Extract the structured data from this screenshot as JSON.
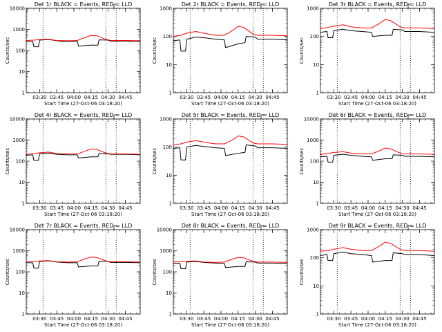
{
  "chart_data": [
    {
      "type": "line",
      "title": "Det 1r BLACK = Events, RED = LLD",
      "xlabel": "Start Time (27-Oct-06 03:18:20)",
      "ylabel": "Counts/sec",
      "xlim": [
        "03:18:20",
        "04:58:00"
      ],
      "ylim": [
        1,
        10000
      ],
      "yscale": "log",
      "x_tick_labels": [
        "03:30",
        "03:45",
        "04:00",
        "04:15",
        "04:30",
        "04:45"
      ],
      "y_tick_labels": [
        "1",
        "10",
        "100",
        "1000",
        "10000"
      ],
      "vertical_dotted_lines": [
        "03:33",
        "04:28",
        "04:37"
      ],
      "series": [
        {
          "color": "#000000",
          "x": [
            "03:18",
            "03:24",
            "03:25",
            "03:29",
            "03:30",
            "03:38",
            "03:45",
            "03:50",
            "04:03",
            "04:04",
            "04:15",
            "04:21",
            "04:22",
            "04:30",
            "04:32",
            "04:45",
            "04:58"
          ],
          "values": [
            270,
            270,
            150,
            150,
            310,
            330,
            290,
            270,
            270,
            160,
            180,
            180,
            320,
            310,
            280,
            280,
            270
          ]
        },
        {
          "color": "#ff0000",
          "x": [
            "03:18",
            "03:25",
            "03:30",
            "03:38",
            "03:45",
            "03:55",
            "04:03",
            "04:10",
            "04:15",
            "04:20",
            "04:28",
            "04:32",
            "04:45",
            "04:58"
          ],
          "values": [
            300,
            310,
            330,
            340,
            300,
            290,
            300,
            420,
            520,
            500,
            340,
            300,
            300,
            290
          ]
        }
      ]
    },
    {
      "type": "line",
      "title": "Det 2r BLACK = Events, RED = LLD",
      "xlabel": "Start Time (27-Oct-06 03:18:20)",
      "ylabel": "Counts/sec",
      "xlim": [
        "03:18:20",
        "04:58:00"
      ],
      "ylim": [
        1,
        1000
      ],
      "yscale": "log",
      "x_tick_labels": [
        "03:30",
        "03:45",
        "04:00",
        "04:15",
        "04:30",
        "04:45"
      ],
      "y_tick_labels": [
        "1",
        "10",
        "100",
        "1000"
      ],
      "vertical_dotted_lines": [
        "03:33",
        "04:28",
        "04:37"
      ],
      "series": [
        {
          "color": "#000000",
          "x": [
            "03:18",
            "03:24",
            "03:25",
            "03:29",
            "03:30",
            "03:38",
            "03:45",
            "03:55",
            "04:03",
            "04:04",
            "04:15",
            "04:21",
            "04:22",
            "04:30",
            "04:32",
            "04:45",
            "04:58"
          ],
          "values": [
            70,
            75,
            30,
            30,
            80,
            95,
            90,
            80,
            75,
            40,
            55,
            60,
            100,
            95,
            80,
            80,
            75
          ]
        },
        {
          "color": "#ff0000",
          "x": [
            "03:18",
            "03:25",
            "03:30",
            "03:38",
            "03:45",
            "03:55",
            "04:03",
            "04:10",
            "04:15",
            "04:20",
            "04:28",
            "04:32",
            "04:45",
            "04:58"
          ],
          "values": [
            100,
            110,
            130,
            150,
            130,
            110,
            110,
            160,
            230,
            210,
            120,
            110,
            110,
            105
          ]
        }
      ]
    },
    {
      "type": "line",
      "title": "Det 3r BLACK = Events, RED = LLD",
      "xlabel": "Start Time (27-Oct-06 03:18:20)",
      "ylabel": "Counts/sec",
      "xlim": [
        "03:18:20",
        "04:58:00"
      ],
      "ylim": [
        1,
        1000
      ],
      "yscale": "log",
      "x_tick_labels": [
        "03:30",
        "03:45",
        "04:00",
        "04:15",
        "04:30",
        "04:45"
      ],
      "y_tick_labels": [
        "1",
        "10",
        "100",
        "1000"
      ],
      "vertical_dotted_lines": [
        "03:33",
        "04:28",
        "04:37"
      ],
      "series": [
        {
          "color": "#000000",
          "x": [
            "03:18",
            "03:24",
            "03:25",
            "03:29",
            "03:30",
            "03:38",
            "03:45",
            "03:55",
            "04:03",
            "04:04",
            "04:15",
            "04:21",
            "04:22",
            "04:30",
            "04:32",
            "04:45",
            "04:58"
          ],
          "values": [
            140,
            150,
            90,
            90,
            160,
            180,
            160,
            150,
            140,
            100,
            110,
            110,
            180,
            170,
            150,
            150,
            140
          ]
        },
        {
          "color": "#ff0000",
          "x": [
            "03:18",
            "03:25",
            "03:30",
            "03:38",
            "03:45",
            "03:55",
            "04:03",
            "04:10",
            "04:15",
            "04:20",
            "04:28",
            "04:32",
            "04:45",
            "04:58"
          ],
          "values": [
            190,
            210,
            230,
            260,
            220,
            200,
            200,
            290,
            400,
            360,
            220,
            200,
            200,
            190
          ]
        }
      ]
    },
    {
      "type": "line",
      "title": "Det 4r BLACK = Events, RED = LLD",
      "xlabel": "Start Time (27-Oct-06 03:18:20)",
      "ylabel": "Counts/sec",
      "xlim": [
        "03:18:20",
        "04:58:00"
      ],
      "ylim": [
        1,
        10000
      ],
      "yscale": "log",
      "x_tick_labels": [
        "03:30",
        "03:45",
        "04:00",
        "04:15",
        "04:30",
        "04:45"
      ],
      "y_tick_labels": [
        "1",
        "10",
        "100",
        "1000",
        "10000"
      ],
      "vertical_dotted_lines": [
        "03:33",
        "04:28",
        "04:37"
      ],
      "series": [
        {
          "color": "#000000",
          "x": [
            "03:18",
            "03:24",
            "03:25",
            "03:29",
            "03:30",
            "03:38",
            "03:45",
            "03:55",
            "04:03",
            "04:04",
            "04:15",
            "04:21",
            "04:22",
            "04:30",
            "04:32",
            "04:45",
            "04:58"
          ],
          "values": [
            190,
            200,
            110,
            110,
            220,
            240,
            210,
            200,
            200,
            140,
            160,
            160,
            230,
            220,
            210,
            210,
            200
          ]
        },
        {
          "color": "#ff0000",
          "x": [
            "03:18",
            "03:25",
            "03:30",
            "03:38",
            "03:45",
            "03:55",
            "04:03",
            "04:10",
            "04:15",
            "04:20",
            "04:28",
            "04:32",
            "04:45",
            "04:58"
          ],
          "values": [
            210,
            230,
            250,
            270,
            230,
            220,
            220,
            300,
            380,
            360,
            240,
            220,
            220,
            210
          ]
        }
      ]
    },
    {
      "type": "line",
      "title": "Det 5r BLACK = Events, RED = LLD",
      "xlabel": "Start Time (27-Oct-06 03:18:20)",
      "ylabel": "Counts/sec",
      "xlim": [
        "03:18:20",
        "04:58:00"
      ],
      "ylim": [
        1,
        1000
      ],
      "yscale": "log",
      "x_tick_labels": [
        "03:30",
        "03:45",
        "04:00",
        "04:15",
        "04:30",
        "04:45"
      ],
      "y_tick_labels": [
        "1",
        "10",
        "100",
        "1000"
      ],
      "vertical_dotted_lines": [
        "03:33",
        "04:28",
        "04:37"
      ],
      "series": [
        {
          "color": "#000000",
          "x": [
            "03:18",
            "03:24",
            "03:25",
            "03:29",
            "03:30",
            "03:38",
            "03:45",
            "03:55",
            "04:03",
            "04:04",
            "04:15",
            "04:21",
            "04:22",
            "04:30",
            "04:32",
            "04:45",
            "04:58"
          ],
          "values": [
            90,
            95,
            35,
            35,
            100,
            115,
            105,
            95,
            90,
            50,
            60,
            65,
            120,
            110,
            95,
            95,
            90
          ]
        },
        {
          "color": "#ff0000",
          "x": [
            "03:18",
            "03:25",
            "03:30",
            "03:38",
            "03:45",
            "03:55",
            "04:03",
            "04:10",
            "04:15",
            "04:20",
            "04:28",
            "04:32",
            "04:45",
            "04:58"
          ],
          "values": [
            120,
            130,
            150,
            170,
            150,
            130,
            130,
            180,
            250,
            230,
            140,
            130,
            130,
            125
          ]
        }
      ]
    },
    {
      "type": "line",
      "title": "Det 6r BLACK = Events, RED = LLD",
      "xlabel": "Start Time (27-Oct-06 03:18:20)",
      "ylabel": "Counts/sec",
      "xlim": [
        "03:18:20",
        "04:58:00"
      ],
      "ylim": [
        1,
        10000
      ],
      "yscale": "log",
      "x_tick_labels": [
        "03:30",
        "03:45",
        "04:00",
        "04:15",
        "04:30",
        "04:45"
      ],
      "y_tick_labels": [
        "1",
        "10",
        "100",
        "1000",
        "10000"
      ],
      "vertical_dotted_lines": [
        "03:33",
        "04:28",
        "04:37"
      ],
      "series": [
        {
          "color": "#000000",
          "x": [
            "03:18",
            "03:24",
            "03:25",
            "03:29",
            "03:30",
            "03:38",
            "03:45",
            "03:55",
            "04:03",
            "04:04",
            "04:15",
            "04:21",
            "04:22",
            "04:30",
            "04:32",
            "04:45",
            "04:58"
          ],
          "values": [
            160,
            170,
            90,
            90,
            190,
            210,
            190,
            170,
            160,
            110,
            130,
            130,
            200,
            190,
            170,
            170,
            160
          ]
        },
        {
          "color": "#ff0000",
          "x": [
            "03:18",
            "03:25",
            "03:30",
            "03:38",
            "03:45",
            "03:55",
            "04:03",
            "04:10",
            "04:15",
            "04:20",
            "04:28",
            "04:32",
            "04:45",
            "04:58"
          ],
          "values": [
            210,
            230,
            260,
            280,
            240,
            220,
            220,
            310,
            420,
            380,
            240,
            220,
            220,
            210
          ]
        }
      ]
    },
    {
      "type": "line",
      "title": "Det 7r BLACK = Events, RED = LLD",
      "xlabel": "Start Time (27-Oct-06 03:18:20)",
      "ylabel": "Counts/sec",
      "xlim": [
        "03:18:20",
        "04:58:00"
      ],
      "ylim": [
        1,
        10000
      ],
      "yscale": "log",
      "x_tick_labels": [
        "03:30",
        "03:45",
        "04:00",
        "04:15",
        "04:30",
        "04:45"
      ],
      "y_tick_labels": [
        "1",
        "10",
        "100",
        "1000",
        "10000"
      ],
      "vertical_dotted_lines": [
        "03:33",
        "04:28",
        "04:37"
      ],
      "series": [
        {
          "color": "#000000",
          "x": [
            "03:18",
            "03:24",
            "03:25",
            "03:29",
            "03:30",
            "03:38",
            "03:45",
            "03:55",
            "04:03",
            "04:04",
            "04:15",
            "04:21",
            "04:22",
            "04:30",
            "04:32",
            "04:45",
            "04:58"
          ],
          "values": [
            270,
            270,
            150,
            150,
            310,
            330,
            290,
            270,
            270,
            170,
            190,
            190,
            320,
            310,
            280,
            280,
            270
          ]
        },
        {
          "color": "#ff0000",
          "x": [
            "03:18",
            "03:25",
            "03:30",
            "03:38",
            "03:45",
            "03:55",
            "04:03",
            "04:10",
            "04:15",
            "04:20",
            "04:28",
            "04:32",
            "04:45",
            "04:58"
          ],
          "values": [
            300,
            310,
            330,
            340,
            300,
            290,
            300,
            420,
            500,
            480,
            330,
            300,
            300,
            290
          ]
        }
      ]
    },
    {
      "type": "line",
      "title": "Det 8r BLACK = Events, RED = LLD",
      "xlabel": "Start Time (27-Oct-06 03:18:20)",
      "ylabel": "Counts/sec",
      "xlim": [
        "03:18:20",
        "04:58:00"
      ],
      "ylim": [
        1,
        10000
      ],
      "yscale": "log",
      "x_tick_labels": [
        "03:30",
        "03:45",
        "04:00",
        "04:15",
        "04:30",
        "04:45"
      ],
      "y_tick_labels": [
        "1",
        "10",
        "100",
        "1000",
        "10000"
      ],
      "vertical_dotted_lines": [
        "03:33",
        "04:28",
        "04:37"
      ],
      "series": [
        {
          "color": "#000000",
          "x": [
            "03:18",
            "03:24",
            "03:25",
            "03:29",
            "03:30",
            "03:38",
            "03:45",
            "03:55",
            "04:03",
            "04:04",
            "04:15",
            "04:21",
            "04:22",
            "04:30",
            "04:32",
            "04:45",
            "04:58"
          ],
          "values": [
            250,
            260,
            140,
            140,
            290,
            310,
            280,
            260,
            250,
            160,
            180,
            180,
            300,
            290,
            260,
            260,
            250
          ]
        },
        {
          "color": "#ff0000",
          "x": [
            "03:18",
            "03:25",
            "03:30",
            "03:38",
            "03:45",
            "03:55",
            "04:03",
            "04:10",
            "04:15",
            "04:20",
            "04:28",
            "04:32",
            "04:45",
            "04:58"
          ],
          "values": [
            290,
            300,
            320,
            330,
            290,
            280,
            290,
            400,
            480,
            460,
            320,
            290,
            290,
            280
          ]
        }
      ]
    },
    {
      "type": "line",
      "title": "Det 9r BLACK = Events, RED = LLD",
      "xlabel": "Start Time (27-Oct-06 03:18:20)",
      "ylabel": "Counts/sec",
      "xlim": [
        "03:18:20",
        "04:58:00"
      ],
      "ylim": [
        1,
        1000
      ],
      "yscale": "log",
      "x_tick_labels": [
        "03:30",
        "03:45",
        "04:00",
        "04:15",
        "04:30",
        "04:45"
      ],
      "y_tick_labels": [
        "1",
        "10",
        "100",
        "1000"
      ],
      "vertical_dotted_lines": [
        "03:33",
        "04:28",
        "04:37"
      ],
      "series": [
        {
          "color": "#000000",
          "x": [
            "03:18",
            "03:24",
            "03:25",
            "03:29",
            "03:30",
            "03:38",
            "03:45",
            "03:55",
            "04:03",
            "04:04",
            "04:15",
            "04:21",
            "04:22",
            "04:30",
            "04:32",
            "04:45",
            "04:58"
          ],
          "values": [
            120,
            130,
            80,
            80,
            140,
            160,
            140,
            130,
            120,
            70,
            80,
            80,
            150,
            140,
            130,
            130,
            120
          ]
        },
        {
          "color": "#ff0000",
          "x": [
            "03:18",
            "03:25",
            "03:30",
            "03:38",
            "03:45",
            "03:55",
            "04:03",
            "04:10",
            "04:15",
            "04:20",
            "04:28",
            "04:32",
            "04:45",
            "04:58"
          ],
          "values": [
            170,
            180,
            200,
            230,
            200,
            180,
            180,
            260,
            360,
            320,
            200,
            180,
            180,
            170
          ]
        }
      ]
    }
  ],
  "colors": {
    "events": "#000000",
    "lld": "#ff0000",
    "axes": "#000000",
    "background": "#ffffff"
  }
}
